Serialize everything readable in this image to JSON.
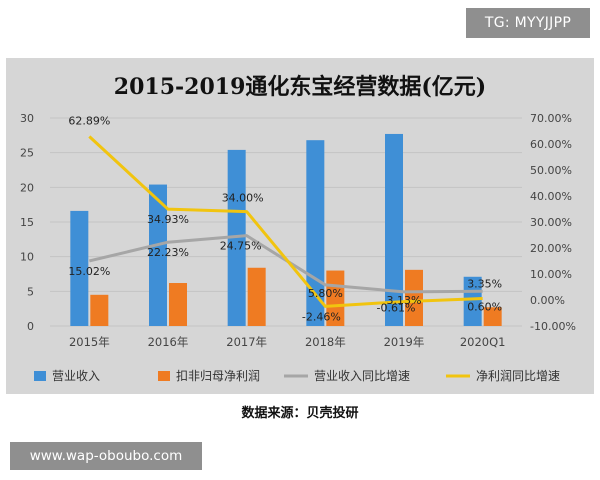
{
  "watermarks": {
    "tg": "TG: MYYJJPP",
    "site": "www.wap-oboubo.com"
  },
  "source": "数据来源：贝壳投研",
  "colors": {
    "revenue": "#3f8fd6",
    "deducted": "#ef7b22",
    "revenue_growth": "#a6a6a6",
    "profit_growth": "#f1c40f",
    "panel": "#d6d6d6",
    "grid": "#c4c4c4"
  },
  "chart_data": {
    "type": "bar",
    "title": "2015-2019通化东宝经营数据(亿元)",
    "categories": [
      "2015年",
      "2016年",
      "2017年",
      "2018年",
      "2019年",
      "2020Q1"
    ],
    "y_left": {
      "ylim": [
        0,
        30
      ],
      "ticks": [
        "0",
        "5",
        "10",
        "15",
        "20",
        "25",
        "30"
      ]
    },
    "y_right": {
      "ylim": [
        -10,
        70
      ],
      "ticks": [
        "-10.00%",
        "0.00%",
        "10.00%",
        "20.00%",
        "30.00%",
        "40.00%",
        "50.00%",
        "60.00%",
        "70.00%"
      ]
    },
    "grid": true,
    "legend_position": "bottom",
    "series": [
      {
        "name": "营业收入",
        "type": "bar",
        "axis": "left",
        "values": [
          16.6,
          20.4,
          25.4,
          26.8,
          27.7,
          7.1
        ]
      },
      {
        "name": "扣非归母净利润",
        "type": "bar",
        "axis": "left",
        "values": [
          4.5,
          6.2,
          8.4,
          8.0,
          8.1,
          2.7
        ]
      },
      {
        "name": "营业收入同比增速",
        "type": "line",
        "axis": "right",
        "values": [
          15.02,
          22.23,
          24.75,
          5.8,
          3.13,
          3.35
        ],
        "labels": [
          "15.02%",
          "22.23%",
          "24.75%",
          "5.80%",
          "3.13%",
          "3.35%"
        ]
      },
      {
        "name": "净利润同比增速",
        "type": "line",
        "axis": "right",
        "values": [
          62.89,
          34.93,
          34.0,
          -2.46,
          -0.61,
          0.6
        ],
        "labels": [
          "62.89%",
          "34.93%",
          "34.00%",
          "-2.46%",
          "-0.61%",
          "0.60%"
        ]
      }
    ]
  }
}
